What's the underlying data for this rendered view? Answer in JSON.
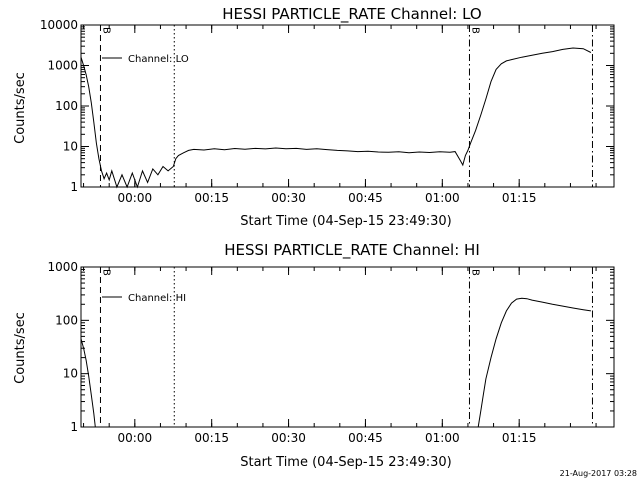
{
  "chart_data": [
    {
      "type": "line",
      "title": "HESSI PARTICLE_RATE Channel: LO",
      "xlabel": "Start Time (04-Sep-15 23:49:30)",
      "ylabel": "Counts/sec",
      "yscale": "log",
      "ylim": [
        1,
        10000
      ],
      "xlim_minutes_from_start": [
        0,
        104
      ],
      "y_ticks": [
        "1",
        "10",
        "100",
        "1000",
        "10000"
      ],
      "x_ticks": [
        "00:00",
        "00:15",
        "00:30",
        "00:45",
        "01:00",
        "01:15"
      ],
      "x_tick_minutes": [
        10.5,
        25.5,
        40.5,
        55.5,
        70.5,
        85.5
      ],
      "legend": "Channel: LO",
      "grid": false,
      "markers": [
        {
          "style": "dashed",
          "x": 3.8,
          "label": "B"
        },
        {
          "style": "dotted",
          "x": 18.2,
          "label": ""
        },
        {
          "style": "dashdot",
          "x": 75.8,
          "label": "B"
        },
        {
          "style": "dashdot",
          "x": 99.8,
          "label": ""
        }
      ],
      "series": [
        {
          "x": [
            0,
            0.5,
            1.0,
            1.5,
            2.0,
            2.5,
            3.0,
            3.5,
            4.0,
            4.5,
            5.0,
            5.5,
            6.0,
            7.0,
            8.0,
            9.0,
            10.0,
            11.0,
            12.0,
            13.0,
            14.0,
            15.0,
            16.0,
            17.0,
            18.0,
            18.5,
            19.0,
            20.0,
            21.0,
            22.0,
            24.0,
            26.0,
            28.0,
            30.0,
            32.0,
            34.0,
            36.0,
            38.0,
            40.0,
            42.0,
            44.0,
            46.0,
            48.0,
            50.0,
            52.0,
            54.0,
            56.0,
            58.0,
            60.0,
            62.0,
            64.0,
            66.0,
            68.0,
            70.0,
            72.0,
            73.0,
            74.0,
            74.5,
            75.0,
            75.5,
            76.0,
            77.0,
            78.0,
            79.0,
            80.0,
            81.0,
            82.0,
            83.0,
            84.0,
            86.0,
            88.0,
            90.0,
            92.0,
            94.0,
            96.0,
            98.0,
            99.5
          ],
          "y": [
            1600,
            1000,
            600,
            300,
            120,
            40,
            12,
            5,
            2.5,
            1.6,
            2.2,
            1.5,
            2.5,
            1.0,
            2.0,
            1.0,
            2.2,
            1.0,
            2.5,
            1.3,
            2.8,
            2.0,
            3.2,
            2.5,
            3.2,
            5,
            6,
            7,
            8,
            8.5,
            8.2,
            8.8,
            8.3,
            8.9,
            8.6,
            9.0,
            8.7,
            9.2,
            8.8,
            9.0,
            8.5,
            8.8,
            8.4,
            8.0,
            7.8,
            7.5,
            7.6,
            7.3,
            7.2,
            7.4,
            7.0,
            7.3,
            7.1,
            7.4,
            7.2,
            7.5,
            4.5,
            3.5,
            6.0,
            8.0,
            12,
            25,
            60,
            150,
            400,
            800,
            1100,
            1300,
            1400,
            1600,
            1800,
            2000,
            2200,
            2500,
            2700,
            2600,
            2100
          ]
        }
      ]
    },
    {
      "type": "line",
      "title": "HESSI PARTICLE_RATE Channel: HI",
      "xlabel": "Start Time (04-Sep-15 23:49:30)",
      "ylabel": "Counts/sec",
      "yscale": "log",
      "ylim": [
        1,
        1000
      ],
      "xlim_minutes_from_start": [
        0,
        104
      ],
      "y_ticks": [
        "1",
        "10",
        "100",
        "1000"
      ],
      "x_ticks": [
        "00:00",
        "00:15",
        "00:30",
        "00:45",
        "01:00",
        "01:15"
      ],
      "x_tick_minutes": [
        10.5,
        25.5,
        40.5,
        55.5,
        70.5,
        85.5
      ],
      "legend": "Channel: HI",
      "grid": false,
      "markers": [
        {
          "style": "dashed",
          "x": 3.8,
          "label": "B"
        },
        {
          "style": "dotted",
          "x": 18.2,
          "label": ""
        },
        {
          "style": "dashdot",
          "x": 75.8,
          "label": "B"
        },
        {
          "style": "dashdot",
          "x": 99.8,
          "label": ""
        }
      ],
      "series": [
        {
          "x": [
            0,
            0.5,
            1.0,
            1.5,
            2.0,
            2.5,
            2.8,
            77.5,
            78.0,
            78.5,
            79.0,
            80.0,
            81.0,
            82.0,
            83.0,
            84.0,
            85.0,
            86.0,
            87.0,
            88.0,
            90.0,
            92.0,
            94.0,
            96.0,
            98.0,
            99.5
          ],
          "y": [
            45,
            30,
            18,
            9,
            4,
            1.8,
            1.0,
            1.0,
            2,
            4,
            8,
            20,
            45,
            90,
            150,
            210,
            250,
            260,
            255,
            240,
            220,
            200,
            185,
            170,
            158,
            150
          ]
        }
      ]
    }
  ],
  "timestamp": "21-Aug-2017 03:28"
}
